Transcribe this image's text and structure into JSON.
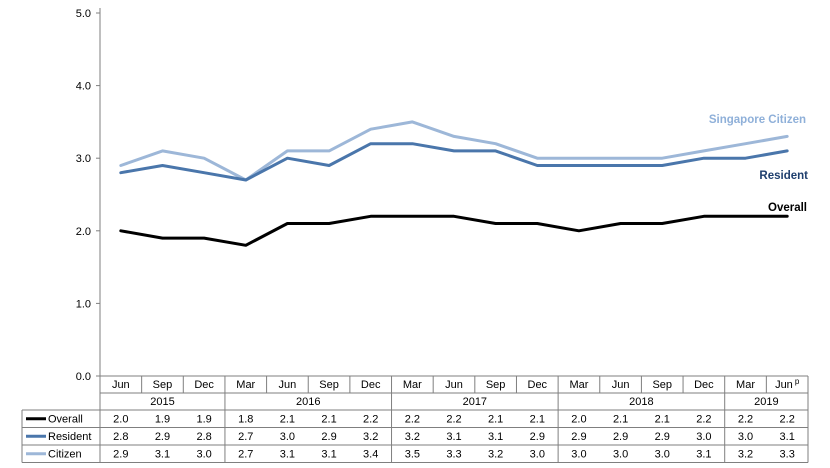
{
  "chart_data": {
    "type": "line",
    "title": "",
    "xlabel": "",
    "ylabel": "",
    "ylim": [
      0,
      5
    ],
    "yticks": [
      "0.0",
      "1.0",
      "2.0",
      "3.0",
      "4.0",
      "5.0"
    ],
    "grid": false,
    "legend": "table-left",
    "categories": [
      "Jun",
      "Sep",
      "Dec",
      "Mar",
      "Jun",
      "Sep",
      "Dec",
      "Mar",
      "Jun",
      "Sep",
      "Dec",
      "Mar",
      "Jun",
      "Sep",
      "Dec",
      "Mar",
      "Jun"
    ],
    "category_suffix_last": "p",
    "years": [
      {
        "label": "2015",
        "start": 0,
        "end": 2
      },
      {
        "label": "2016",
        "start": 3,
        "end": 6
      },
      {
        "label": "2017",
        "start": 7,
        "end": 10
      },
      {
        "label": "2018",
        "start": 11,
        "end": 14
      },
      {
        "label": "2019",
        "start": 15,
        "end": 16
      }
    ],
    "series": [
      {
        "name": "Overall",
        "end_label": "Overall",
        "color": "#000000",
        "label_color": "#000000",
        "values": [
          2.0,
          1.9,
          1.9,
          1.8,
          2.1,
          2.1,
          2.2,
          2.2,
          2.2,
          2.1,
          2.1,
          2.0,
          2.1,
          2.1,
          2.2,
          2.2,
          2.2
        ],
        "display": [
          "2.0",
          "1.9",
          "1.9",
          "1.8",
          "2.1",
          "2.1",
          "2.2",
          "2.2",
          "2.2",
          "2.1",
          "2.1",
          "2.0",
          "2.1",
          "2.1",
          "2.2",
          "2.2",
          "2.2"
        ]
      },
      {
        "name": "Resident",
        "end_label": "Resident",
        "color": "#4a76ab",
        "label_color": "#1f3f6e",
        "values": [
          2.8,
          2.9,
          2.8,
          2.7,
          3.0,
          2.9,
          3.2,
          3.2,
          3.1,
          3.1,
          2.9,
          2.9,
          2.9,
          2.9,
          3.0,
          3.0,
          3.1
        ],
        "display": [
          "2.8",
          "2.9",
          "2.8",
          "2.7",
          "3.0",
          "2.9",
          "3.2",
          "3.2",
          "3.1",
          "3.1",
          "2.9",
          "2.9",
          "2.9",
          "2.9",
          "3.0",
          "3.0",
          "3.1"
        ]
      },
      {
        "name": "Citizen",
        "end_label": "Singapore Citizen",
        "color": "#9db7d8",
        "label_color": "#8fb0d9",
        "values": [
          2.9,
          3.1,
          3.0,
          2.7,
          3.1,
          3.1,
          3.4,
          3.5,
          3.3,
          3.2,
          3.0,
          3.0,
          3.0,
          3.0,
          3.1,
          3.2,
          3.3
        ],
        "display": [
          "2.9",
          "3.1",
          "3.0",
          "2.7",
          "3.1",
          "3.1",
          "3.4",
          "3.5",
          "3.3",
          "3.2",
          "3.0",
          "3.0",
          "3.0",
          "3.0",
          "3.1",
          "3.2",
          "3.3"
        ]
      }
    ]
  }
}
